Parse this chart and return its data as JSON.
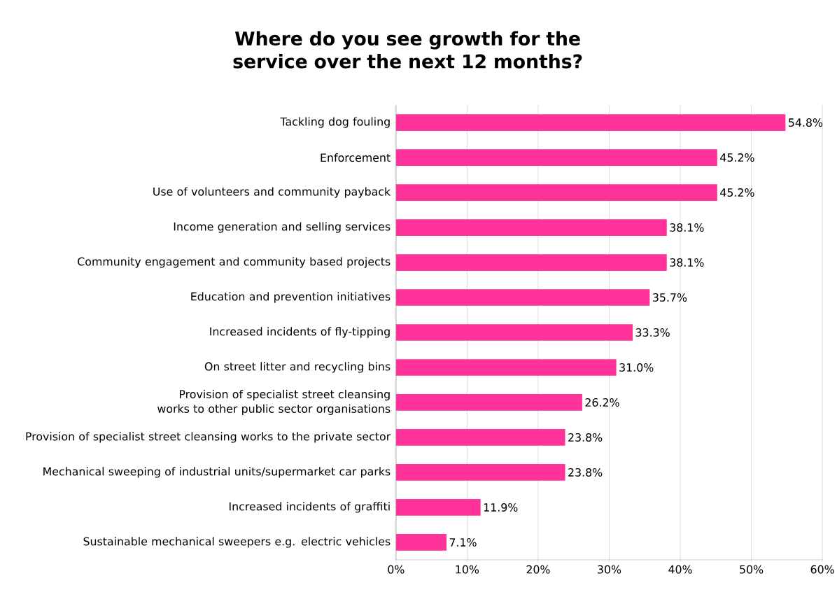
{
  "chart_data": {
    "type": "bar",
    "orientation": "horizontal",
    "title": "Where do you see growth for the service over the next 12 months?",
    "categories": [
      "Tackling dog fouling",
      "Enforcement",
      "Use of volunteers and community payback",
      "Income generation and selling services",
      "Community engagement and community based projects",
      "Education and prevention initiatives",
      "Increased incidents of fly-tipping",
      "On street litter and recycling bins",
      "Provision of specialist street cleansing works to other public sector organisations",
      "Provision of specialist street cleansing works to the private sector",
      "Mechanical sweeping of industrial units/supermarket car parks",
      "Increased incidents of graffiti",
      "Sustainable mechanical sweepers e.g. electric vehicles"
    ],
    "values": [
      54.8,
      45.2,
      45.2,
      38.1,
      38.1,
      35.7,
      33.3,
      31.0,
      26.2,
      23.8,
      23.8,
      11.9,
      7.1
    ],
    "value_labels": [
      "54.8%",
      "45.2%",
      "45.2%",
      "38.1%",
      "38.1%",
      "35.7%",
      "33.3%",
      "31.0%",
      "26.2%",
      "23.8%",
      "23.8%",
      "11.9%",
      "7.1%"
    ],
    "color": "#ff3399",
    "xlim": [
      0,
      60
    ],
    "xticks": [
      {
        "value": 0,
        "label": "0%"
      },
      {
        "value": 10,
        "label": "10%"
      },
      {
        "value": 20,
        "label": "20%"
      },
      {
        "value": 30,
        "label": "30%"
      },
      {
        "value": 40,
        "label": "40%"
      },
      {
        "value": 50,
        "label": "50%"
      },
      {
        "value": 60,
        "label": "60%"
      }
    ],
    "grid": "x"
  }
}
